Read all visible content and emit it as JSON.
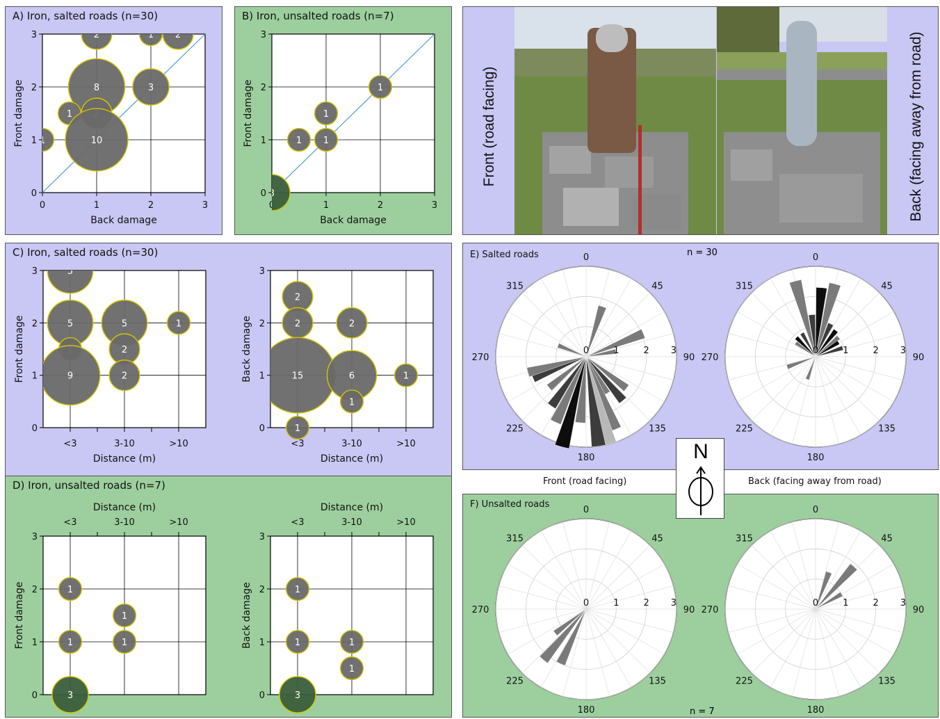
{
  "panel_titles": {
    "A": "A) Iron, salted roads (n=30)",
    "B": "B) Iron, unsalted roads (n=7)",
    "C": "C) Iron, salted roads (n=30)",
    "D": "D) Iron, unsalted roads (n=7)",
    "E": "E) Salted roads",
    "F": "F) Unsalted roads"
  },
  "photo_labels": {
    "front": "Front (road facing)",
    "back": "Back (facing away from road)"
  },
  "rose_captions": {
    "front": "Front (road facing)",
    "back": "Back (facing away from road)"
  },
  "compass": {
    "letter": "N"
  },
  "n_labels": {
    "salted": "n = 30",
    "unsalted": "n = 7"
  },
  "colors": {
    "salted_bg": "#c9c7f3",
    "unsalted_bg": "#9dcf9e",
    "bubble": "#696969",
    "bubble_edge": "#d4c400",
    "big_bubble_unsalted": "#3b5e3b",
    "diagonal": "#4a9bd8"
  },
  "icons": [
    "compass-north-arrow-icon"
  ],
  "chart_data": [
    {
      "id": "A",
      "type": "scatter",
      "title": "A) Iron, salted roads (n=30)",
      "xlabel": "Back damage",
      "ylabel": "Front damage",
      "xlim": [
        0,
        3
      ],
      "ylim": [
        0,
        3
      ],
      "xticks": [
        "0",
        "1",
        "2",
        "3"
      ],
      "yticks": [
        "0",
        "1",
        "2",
        "3"
      ],
      "grid": true,
      "diagonal": true,
      "points": [
        {
          "x": 1,
          "y": 3,
          "n": 2
        },
        {
          "x": 2,
          "y": 3,
          "n": 1
        },
        {
          "x": 2.5,
          "y": 3,
          "n": 2
        },
        {
          "x": 1,
          "y": 2,
          "n": 8
        },
        {
          "x": 2,
          "y": 2,
          "n": 3
        },
        {
          "x": 1,
          "y": 1.5,
          "n": 2
        },
        {
          "x": 0.5,
          "y": 1.5,
          "n": 1
        },
        {
          "x": 0,
          "y": 1,
          "n": 1
        },
        {
          "x": 1,
          "y": 1,
          "n": 10
        }
      ]
    },
    {
      "id": "B",
      "type": "scatter",
      "title": "B) Iron, unsalted roads (n=7)",
      "xlabel": "Back damage",
      "ylabel": "Front damage",
      "xlim": [
        0,
        3
      ],
      "ylim": [
        0,
        3
      ],
      "xticks": [
        "0",
        "1",
        "2",
        "3"
      ],
      "yticks": [
        "0",
        "1",
        "2",
        "3"
      ],
      "grid": true,
      "diagonal": true,
      "points": [
        {
          "x": 2,
          "y": 2,
          "n": 1
        },
        {
          "x": 1,
          "y": 1.5,
          "n": 1
        },
        {
          "x": 0.5,
          "y": 1,
          "n": 1
        },
        {
          "x": 1,
          "y": 1,
          "n": 1
        },
        {
          "x": 0,
          "y": 0,
          "n": 3
        }
      ]
    },
    {
      "id": "C-front",
      "type": "scatter",
      "title": "C) Iron, salted roads (n=30)",
      "xlabel": "Distance (m)",
      "ylabel": "Front damage",
      "categories": [
        "<3",
        "3-10",
        ">10"
      ],
      "ylim": [
        0,
        3
      ],
      "yticks": [
        "0",
        "1",
        "2",
        "3"
      ],
      "grid": true,
      "points": [
        {
          "x": "<3",
          "y": 3,
          "n": 5
        },
        {
          "x": "<3",
          "y": 2,
          "n": 5
        },
        {
          "x": "<3",
          "y": 1.5,
          "n": 1
        },
        {
          "x": "<3",
          "y": 1,
          "n": 9
        },
        {
          "x": "3-10",
          "y": 2,
          "n": 5
        },
        {
          "x": "3-10",
          "y": 1.5,
          "n": 2
        },
        {
          "x": "3-10",
          "y": 1,
          "n": 2
        },
        {
          "x": ">10",
          "y": 2,
          "n": 1
        }
      ]
    },
    {
      "id": "C-back",
      "type": "scatter",
      "xlabel": "Distance (m)",
      "ylabel": "Back damage",
      "categories": [
        "<3",
        "3-10",
        ">10"
      ],
      "ylim": [
        0,
        3
      ],
      "yticks": [
        "0",
        "1",
        "2",
        "3"
      ],
      "grid": true,
      "points": [
        {
          "x": "<3",
          "y": 2.5,
          "n": 2
        },
        {
          "x": "<3",
          "y": 2,
          "n": 2
        },
        {
          "x": "<3",
          "y": 1,
          "n": 15
        },
        {
          "x": "<3",
          "y": 0,
          "n": 1
        },
        {
          "x": "3-10",
          "y": 2,
          "n": 2
        },
        {
          "x": "3-10",
          "y": 1,
          "n": 6
        },
        {
          "x": "3-10",
          "y": 0.5,
          "n": 1
        },
        {
          "x": ">10",
          "y": 1,
          "n": 1
        }
      ]
    },
    {
      "id": "D-front",
      "type": "scatter",
      "title": "D) Iron, unsalted roads (n=7)",
      "xlabel": "Distance (m)",
      "ylabel": "Front damage",
      "categories": [
        "<3",
        "3-10",
        ">10"
      ],
      "ylim": [
        0,
        3
      ],
      "yticks": [
        "0",
        "1",
        "2",
        "3"
      ],
      "grid": true,
      "points": [
        {
          "x": "<3",
          "y": 2,
          "n": 1
        },
        {
          "x": "<3",
          "y": 1,
          "n": 1
        },
        {
          "x": "<3",
          "y": 0,
          "n": 3
        },
        {
          "x": "3-10",
          "y": 1.5,
          "n": 1
        },
        {
          "x": "3-10",
          "y": 1,
          "n": 1
        }
      ]
    },
    {
      "id": "D-back",
      "type": "scatter",
      "xlabel": "Distance (m)",
      "ylabel": "Back damage",
      "categories": [
        "<3",
        "3-10",
        ">10"
      ],
      "ylim": [
        0,
        3
      ],
      "yticks": [
        "0",
        "1",
        "2",
        "3"
      ],
      "grid": true,
      "points": [
        {
          "x": "<3",
          "y": 2,
          "n": 1
        },
        {
          "x": "<3",
          "y": 1,
          "n": 1
        },
        {
          "x": "<3",
          "y": 0,
          "n": 3
        },
        {
          "x": "3-10",
          "y": 1,
          "n": 1
        },
        {
          "x": "3-10",
          "y": 0.5,
          "n": 1
        }
      ]
    },
    {
      "id": "E-front",
      "type": "rose",
      "title": "E) Salted roads",
      "r_ticks": [
        "0",
        "1",
        "2",
        "3"
      ],
      "angle_ticks": [
        "0",
        "45",
        "90",
        "135",
        "180",
        "225",
        "270",
        "315"
      ],
      "wedges": [
        {
          "angle": 18,
          "r": 1.75,
          "shade": "gray"
        },
        {
          "angle": 68,
          "r": 2.05,
          "shade": "gray"
        },
        {
          "angle": 80,
          "r": 1.0,
          "shade": "gray"
        },
        {
          "angle": 128,
          "r": 1.7,
          "shade": "gray"
        },
        {
          "angle": 140,
          "r": 1.9,
          "shade": "dark"
        },
        {
          "angle": 150,
          "r": 1.4,
          "shade": "gray"
        },
        {
          "angle": 158,
          "r": 2.6,
          "shade": "gray"
        },
        {
          "angle": 165,
          "r": 3.0,
          "shade": "light"
        },
        {
          "angle": 172,
          "r": 3.0,
          "shade": "dark"
        },
        {
          "angle": 185,
          "r": 2.2,
          "shade": "gray"
        },
        {
          "angle": 195,
          "r": 3.1,
          "shade": "black"
        },
        {
          "angle": 205,
          "r": 2.4,
          "shade": "gray"
        },
        {
          "angle": 215,
          "r": 2.0,
          "shade": "dark"
        },
        {
          "angle": 230,
          "r": 1.6,
          "shade": "gray"
        },
        {
          "angle": 248,
          "r": 1.9,
          "shade": "dark"
        },
        {
          "angle": 255,
          "r": 2.0,
          "shade": "gray"
        },
        {
          "angle": 292,
          "r": 1.0,
          "shade": "gray"
        }
      ]
    },
    {
      "id": "E-back",
      "type": "rose",
      "n_label": "n = 30",
      "r_ticks": [
        "0",
        "1",
        "2",
        "3"
      ],
      "angle_ticks": [
        "0",
        "45",
        "90",
        "135",
        "180",
        "225",
        "270",
        "315"
      ],
      "wedges": [
        {
          "angle": 345,
          "r": 2.6,
          "shade": "gray"
        },
        {
          "angle": 355,
          "r": 1.4,
          "shade": "dark"
        },
        {
          "angle": 5,
          "r": 2.3,
          "shade": "black"
        },
        {
          "angle": 15,
          "r": 2.5,
          "shade": "gray"
        },
        {
          "angle": 25,
          "r": 1.2,
          "shade": "dark"
        },
        {
          "angle": 38,
          "r": 1.1,
          "shade": "black"
        },
        {
          "angle": 50,
          "r": 1.0,
          "shade": "gray"
        },
        {
          "angle": 58,
          "r": 0.9,
          "shade": "black"
        },
        {
          "angle": 72,
          "r": 0.95,
          "shade": "dark"
        },
        {
          "angle": 330,
          "r": 0.9,
          "shade": "dark"
        },
        {
          "angle": 315,
          "r": 0.9,
          "shade": "black"
        },
        {
          "angle": 305,
          "r": 0.8,
          "shade": "gray"
        },
        {
          "angle": 200,
          "r": 0.8,
          "shade": "gray"
        },
        {
          "angle": 250,
          "r": 1.0,
          "shade": "gray"
        }
      ]
    },
    {
      "id": "F-front",
      "type": "rose",
      "title": "F) Unsalted roads",
      "r_ticks": [
        "0",
        "1",
        "2",
        "3"
      ],
      "angle_ticks": [
        "0",
        "45",
        "90",
        "135",
        "180",
        "225",
        "270",
        "315"
      ],
      "wedges": [
        {
          "angle": 205,
          "r": 2.0,
          "shade": "gray"
        },
        {
          "angle": 220,
          "r": 2.2,
          "shade": "gray"
        },
        {
          "angle": 232,
          "r": 1.3,
          "shade": "gray"
        }
      ]
    },
    {
      "id": "F-back",
      "type": "rose",
      "n_label": "n = 7",
      "r_ticks": [
        "0",
        "1",
        "2",
        "3"
      ],
      "angle_ticks": [
        "0",
        "45",
        "90",
        "135",
        "180",
        "225",
        "270",
        "315"
      ],
      "wedges": [
        {
          "angle": 20,
          "r": 1.3,
          "shade": "gray"
        },
        {
          "angle": 42,
          "r": 1.9,
          "shade": "gray"
        },
        {
          "angle": 60,
          "r": 1.0,
          "shade": "gray"
        }
      ]
    }
  ]
}
